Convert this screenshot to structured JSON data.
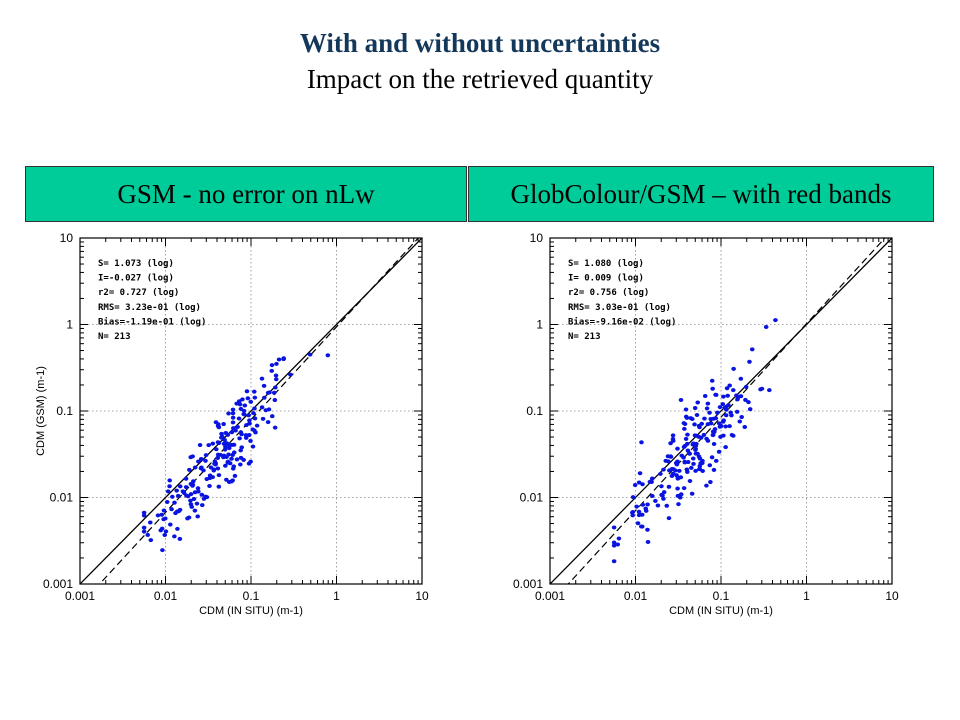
{
  "slide": {
    "title": "With and without uncertainties",
    "subtitle": "Impact on the retrieved quantity"
  },
  "colors": {
    "banner": "#00cc99",
    "points": "#0a14e0",
    "title": "#14385a"
  },
  "chart_data": [
    {
      "type": "scatter",
      "banner": "GSM - no error on nLw",
      "xlabel": "CDM (IN SITU) (m-1)",
      "ylabel": "CDM (GSM) (m-1)",
      "xscale": "log",
      "yscale": "log",
      "xlim": [
        0.001,
        10
      ],
      "ylim": [
        0.001,
        10
      ],
      "xticks": [
        "0.001",
        "0.01",
        "0.1",
        "1",
        "10"
      ],
      "yticks": [
        "0.001",
        "0.01",
        "0.1",
        "1",
        "10"
      ],
      "grid": true,
      "stats": [
        "S= 1.073 (log)",
        "I=-0.027 (log)",
        "r2= 0.727 (log)",
        "RMS= 3.23e-01 (log)",
        "Bias=-1.19e-01 (log)",
        "N= 213"
      ],
      "lines": [
        {
          "style": "solid",
          "meaning": "1:1"
        },
        {
          "style": "dashed",
          "meaning": "fit"
        }
      ],
      "fit": {
        "slope_log": 1.073,
        "intercept_log": -0.027
      }
    },
    {
      "type": "scatter",
      "banner": "GlobColour/GSM – with red bands",
      "xlabel": "CDM (IN SITU) (m-1)",
      "ylabel": "",
      "xscale": "log",
      "yscale": "log",
      "xlim": [
        0.001,
        10
      ],
      "ylim": [
        0.001,
        10
      ],
      "xticks": [
        "0.001",
        "0.01",
        "0.1",
        "1",
        "10"
      ],
      "yticks": [
        "0.001",
        "0.01",
        "0.1",
        "1",
        "10"
      ],
      "grid": true,
      "stats": [
        "S= 1.080 (log)",
        "I= 0.009 (log)",
        "r2= 0.756 (log)",
        "RMS= 3.03e-01 (log)",
        "Bias=-9.16e-02 (log)",
        "N= 213"
      ],
      "lines": [
        {
          "style": "solid",
          "meaning": "1:1"
        },
        {
          "style": "dashed",
          "meaning": "fit"
        }
      ],
      "fit": {
        "slope_log": 1.08,
        "intercept_log": 0.009
      }
    }
  ]
}
